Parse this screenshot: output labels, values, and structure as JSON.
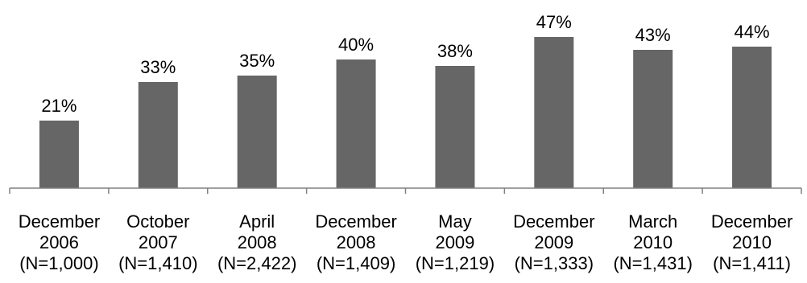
{
  "chart_data": {
    "type": "bar",
    "title": "",
    "xlabel": "",
    "ylabel": "",
    "ylim": [
      0,
      50
    ],
    "grid": false,
    "legend": "none",
    "bar_color": "#666666",
    "axis_color": "#808080",
    "categories": [
      [
        "December",
        "2006",
        "(N=1,000)"
      ],
      [
        "October",
        "2007",
        "(N=1,410)"
      ],
      [
        "April",
        "2008",
        "(N=2,422)"
      ],
      [
        "December",
        "2008",
        "(N=1,409)"
      ],
      [
        "May",
        "2009",
        "(N=1,219)"
      ],
      [
        "December",
        "2009",
        "(N=1,333)"
      ],
      [
        "March",
        "2010",
        "(N=1,431)"
      ],
      [
        "December",
        "2010",
        "(N=1,411)"
      ]
    ],
    "values": [
      21,
      33,
      35,
      40,
      38,
      47,
      43,
      44
    ],
    "value_labels": [
      "21%",
      "33%",
      "35%",
      "40%",
      "38%",
      "47%",
      "43%",
      "44%"
    ]
  }
}
